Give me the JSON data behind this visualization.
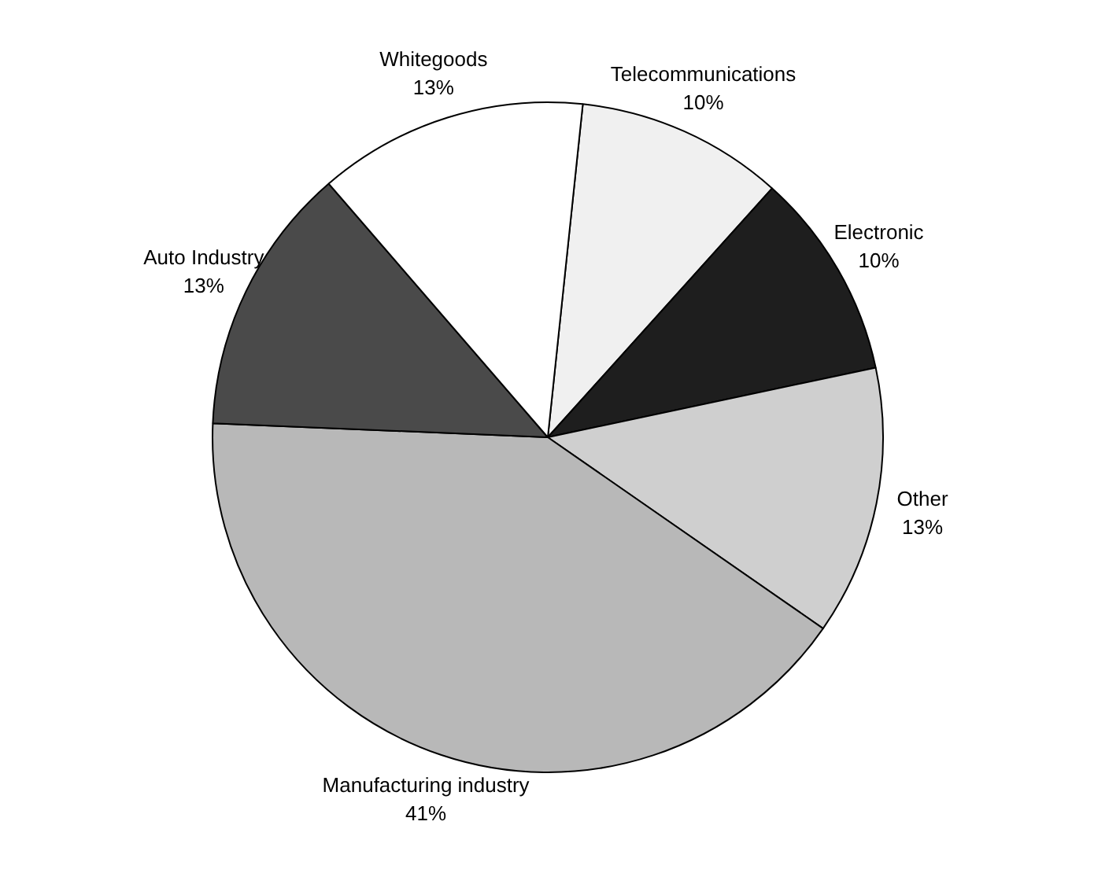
{
  "chart_data": {
    "type": "pie",
    "categories": [
      "Telecommunications",
      "Electronic",
      "Other",
      "Manufacturing industry",
      "Auto Industry",
      "Whitegoods"
    ],
    "values": [
      10,
      10,
      13,
      41,
      13,
      13
    ],
    "colors": [
      "#f0f0f0",
      "#1e1e1e",
      "#cfcfcf",
      "#b8b8b8",
      "#4a4a4a",
      "#ffffff"
    ],
    "value_labels": [
      "10%",
      "10%",
      "13%",
      "41%",
      "13%",
      "13%"
    ]
  }
}
